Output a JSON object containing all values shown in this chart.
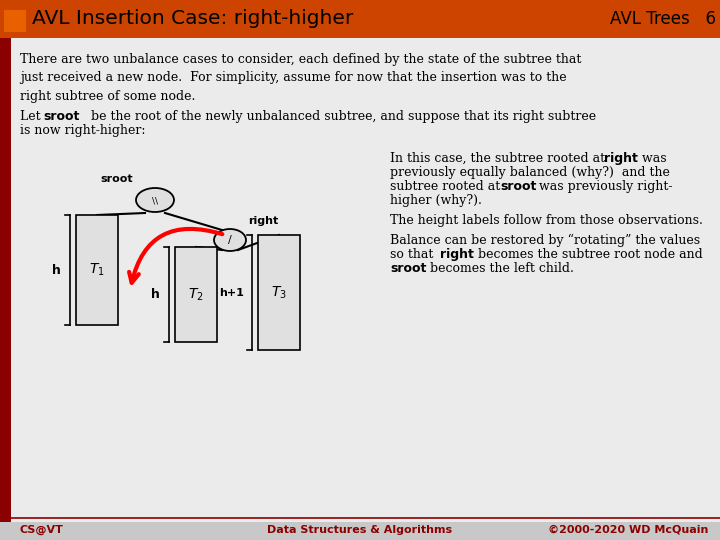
{
  "title": "AVL Insertion Case: right-higher",
  "title_right": "AVL Trees   6",
  "header_bg": "#CC4400",
  "header_text_color": "#000000",
  "dark_red": "#8B0000",
  "body_bg": "#EFEFEF",
  "slide_bg": "#C8C8C8",
  "footer_left": "CS@VT",
  "footer_center": "Data Structures & Algorithms",
  "footer_right": "©2000-2020 WD McQuain",
  "footer_color": "#8B0000"
}
